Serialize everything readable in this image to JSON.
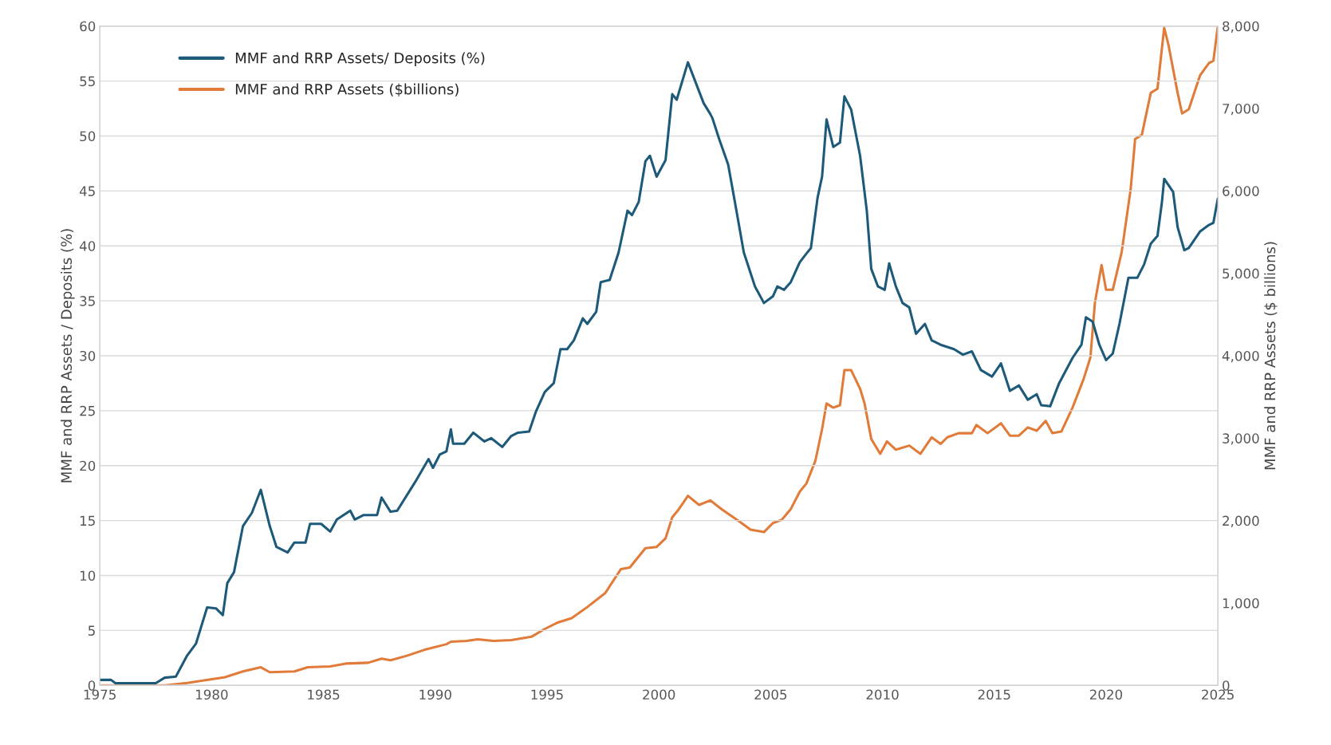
{
  "chart_data": {
    "type": "line",
    "ylabel": "MMF and RRP Assets / Deposits (%)",
    "y2label": "MMF and RRP Assets ($ billions)",
    "xlim": [
      1975,
      2025
    ],
    "xticks": [
      1975,
      1980,
      1985,
      1990,
      1995,
      2000,
      2005,
      2010,
      2015,
      2020,
      2025
    ],
    "ylim": [
      0,
      60
    ],
    "yticks": [
      0,
      5,
      10,
      15,
      20,
      25,
      30,
      35,
      40,
      45,
      50,
      55,
      60
    ],
    "y2lim": [
      0,
      8000
    ],
    "y2ticks": [
      0,
      {
        "value": 1000,
        "label": "1,000"
      },
      {
        "value": 2000,
        "label": "2,000"
      },
      {
        "value": 3000,
        "label": "3,000"
      },
      {
        "value": 4000,
        "label": "4,000"
      },
      {
        "value": 5000,
        "label": "5,000"
      },
      {
        "value": 6000,
        "label": "6,000"
      },
      {
        "value": 7000,
        "label": "7,000"
      },
      {
        "value": 8000,
        "label": "8,000"
      }
    ],
    "grid": "y",
    "legend": "top left",
    "line_style": "solid",
    "series": [
      {
        "name": "MMF and RRP Assets/ Deposits (%)",
        "color": "#1d5a7a",
        "x": [
          1975.0,
          1975.5,
          1975.7,
          1977.5,
          1977.9,
          1978.4,
          1978.9,
          1979.3,
          1979.8,
          1980.2,
          1980.5,
          1980.7,
          1981.0,
          1981.4,
          1981.8,
          1982.2,
          1982.6,
          1982.9,
          1983.4,
          1983.7,
          1984.2,
          1984.4,
          1984.9,
          1985.3,
          1985.6,
          1986.2,
          1986.4,
          1986.8,
          1987.4,
          1987.6,
          1988.0,
          1988.3,
          1989.1,
          1989.7,
          1989.9,
          1990.2,
          1990.5,
          1990.7,
          1990.8,
          1991.3,
          1991.7,
          1992.2,
          1992.5,
          1993.0,
          1993.4,
          1993.7,
          1994.2,
          1994.5,
          1994.9,
          1995.3,
          1995.6,
          1995.9,
          1996.2,
          1996.6,
          1996.8,
          1997.2,
          1997.4,
          1997.8,
          1998.2,
          1998.6,
          1998.8,
          1999.1,
          1999.4,
          1999.6,
          1999.9,
          2000.3,
          2000.6,
          2000.8,
          2001.3,
          2002.0,
          2002.3,
          2002.4,
          2002.7,
          2003.1,
          2003.4,
          2003.8,
          2004.3,
          2004.7,
          2005.1,
          2005.3,
          2005.6,
          2005.9,
          2006.3,
          2006.6,
          2006.8,
          2007.1,
          2007.3,
          2007.5,
          2007.8,
          2008.1,
          2008.3,
          2008.6,
          2009.0,
          2009.3,
          2009.5,
          2009.8,
          2010.1,
          2010.3,
          2010.6,
          2010.9,
          2011.2,
          2011.5,
          2011.9,
          2012.2,
          2012.6,
          2013.2,
          2013.6,
          2014.0,
          2014.4,
          2014.9,
          2015.3,
          2015.7,
          2016.1,
          2016.5,
          2016.9,
          2017.1,
          2017.5,
          2017.9,
          2018.5,
          2018.9,
          2019.1,
          2019.4,
          2019.7,
          2020.0,
          2020.3,
          2020.6,
          2021.0,
          2021.4,
          2021.7,
          2022.0,
          2022.3,
          2022.5,
          2022.6,
          2023.0,
          2023.2,
          2023.5,
          2023.7,
          2024.2,
          2024.6,
          2024.8,
          2025.0
        ],
        "values": [
          0.5,
          0.5,
          0.2,
          0.2,
          0.7,
          0.8,
          2.7,
          3.8,
          7.1,
          7.0,
          6.4,
          9.3,
          10.3,
          14.5,
          15.7,
          17.8,
          14.5,
          12.6,
          12.1,
          13.0,
          13.0,
          14.7,
          14.7,
          14.0,
          15.1,
          15.9,
          15.1,
          15.5,
          15.5,
          17.1,
          15.8,
          15.9,
          18.5,
          20.6,
          19.8,
          21.0,
          21.3,
          23.3,
          22.0,
          22.0,
          23.0,
          22.2,
          22.5,
          21.7,
          22.7,
          23.0,
          23.1,
          24.9,
          26.7,
          27.5,
          30.6,
          30.6,
          31.4,
          33.4,
          32.9,
          34.0,
          36.7,
          36.9,
          39.4,
          43.2,
          42.8,
          44.0,
          47.7,
          48.2,
          46.3,
          47.8,
          53.8,
          53.3,
          56.7,
          53.0,
          52.0,
          51.6,
          49.7,
          47.4,
          44.0,
          39.4,
          36.3,
          34.8,
          35.4,
          36.3,
          36.0,
          36.7,
          38.5,
          39.3,
          39.8,
          44.4,
          46.3,
          51.5,
          49.0,
          49.4,
          53.6,
          52.4,
          48.2,
          43.2,
          37.9,
          36.3,
          36.0,
          38.4,
          36.3,
          34.8,
          34.4,
          32.0,
          32.9,
          31.4,
          31.0,
          30.6,
          30.1,
          30.4,
          28.7,
          28.1,
          29.3,
          26.8,
          27.3,
          26.0,
          26.5,
          25.5,
          25.4,
          27.5,
          29.8,
          31.0,
          33.5,
          33.1,
          31.0,
          29.6,
          30.2,
          32.9,
          37.1,
          37.1,
          38.3,
          40.2,
          40.9,
          44.0,
          46.1,
          44.9,
          41.7,
          39.6,
          39.8,
          41.3,
          41.9,
          42.1,
          44.3
        ]
      },
      {
        "name": "MMF and RRP Assets ($billions)",
        "color": "#e07b39",
        "axis": "y2",
        "x": [
          1975.0,
          1977.9,
          1978.9,
          1979.9,
          1980.6,
          1981.4,
          1982.2,
          1982.6,
          1983.7,
          1984.3,
          1985.3,
          1986.0,
          1987.0,
          1987.6,
          1988.0,
          1988.7,
          1989.5,
          1990.5,
          1990.7,
          1991.4,
          1991.9,
          1992.6,
          1993.4,
          1994.3,
          1994.9,
          1995.5,
          1996.1,
          1996.8,
          1997.6,
          1998.3,
          1998.7,
          1999.4,
          1999.9,
          2000.3,
          2000.6,
          2000.9,
          2001.3,
          2001.8,
          2002.3,
          2002.8,
          2003.6,
          2004.1,
          2004.7,
          2005.1,
          2005.5,
          2005.9,
          2006.3,
          2006.6,
          2007.0,
          2007.3,
          2007.5,
          2007.8,
          2008.1,
          2008.3,
          2008.6,
          2009.0,
          2009.2,
          2009.5,
          2009.9,
          2010.2,
          2010.6,
          2011.2,
          2011.7,
          2012.2,
          2012.6,
          2012.9,
          2013.4,
          2014.0,
          2014.2,
          2014.7,
          2015.3,
          2015.7,
          2016.1,
          2016.5,
          2016.9,
          2017.3,
          2017.6,
          2018.0,
          2018.5,
          2019.0,
          2019.3,
          2019.5,
          2019.8,
          2020.0,
          2020.3,
          2020.7,
          2021.1,
          2021.3,
          2021.6,
          2022.0,
          2022.3,
          2022.6,
          2022.8,
          2023.2,
          2023.4,
          2023.7,
          2024.2,
          2024.6,
          2024.8,
          2025.0
        ],
        "values": [
          0,
          0,
          30,
          70,
          100,
          170,
          220,
          160,
          170,
          220,
          230,
          265,
          275,
          325,
          305,
          357,
          430,
          500,
          530,
          540,
          560,
          540,
          550,
          590,
          685,
          765,
          815,
          950,
          1120,
          1410,
          1430,
          1665,
          1680,
          1785,
          2040,
          2140,
          2300,
          2190,
          2245,
          2140,
          1990,
          1890,
          1860,
          1970,
          2010,
          2140,
          2350,
          2450,
          2725,
          3110,
          3420,
          3370,
          3400,
          3825,
          3825,
          3600,
          3420,
          2990,
          2810,
          2960,
          2860,
          2910,
          2810,
          3010,
          2930,
          3010,
          3060,
          3060,
          3160,
          3060,
          3180,
          3030,
          3030,
          3130,
          3090,
          3210,
          3060,
          3080,
          3370,
          3720,
          3980,
          4640,
          5100,
          4800,
          4800,
          5260,
          6020,
          6630,
          6680,
          7190,
          7240,
          7980,
          7760,
          7190,
          6940,
          6990,
          7400,
          7550,
          7580,
          8000
        ]
      }
    ]
  }
}
